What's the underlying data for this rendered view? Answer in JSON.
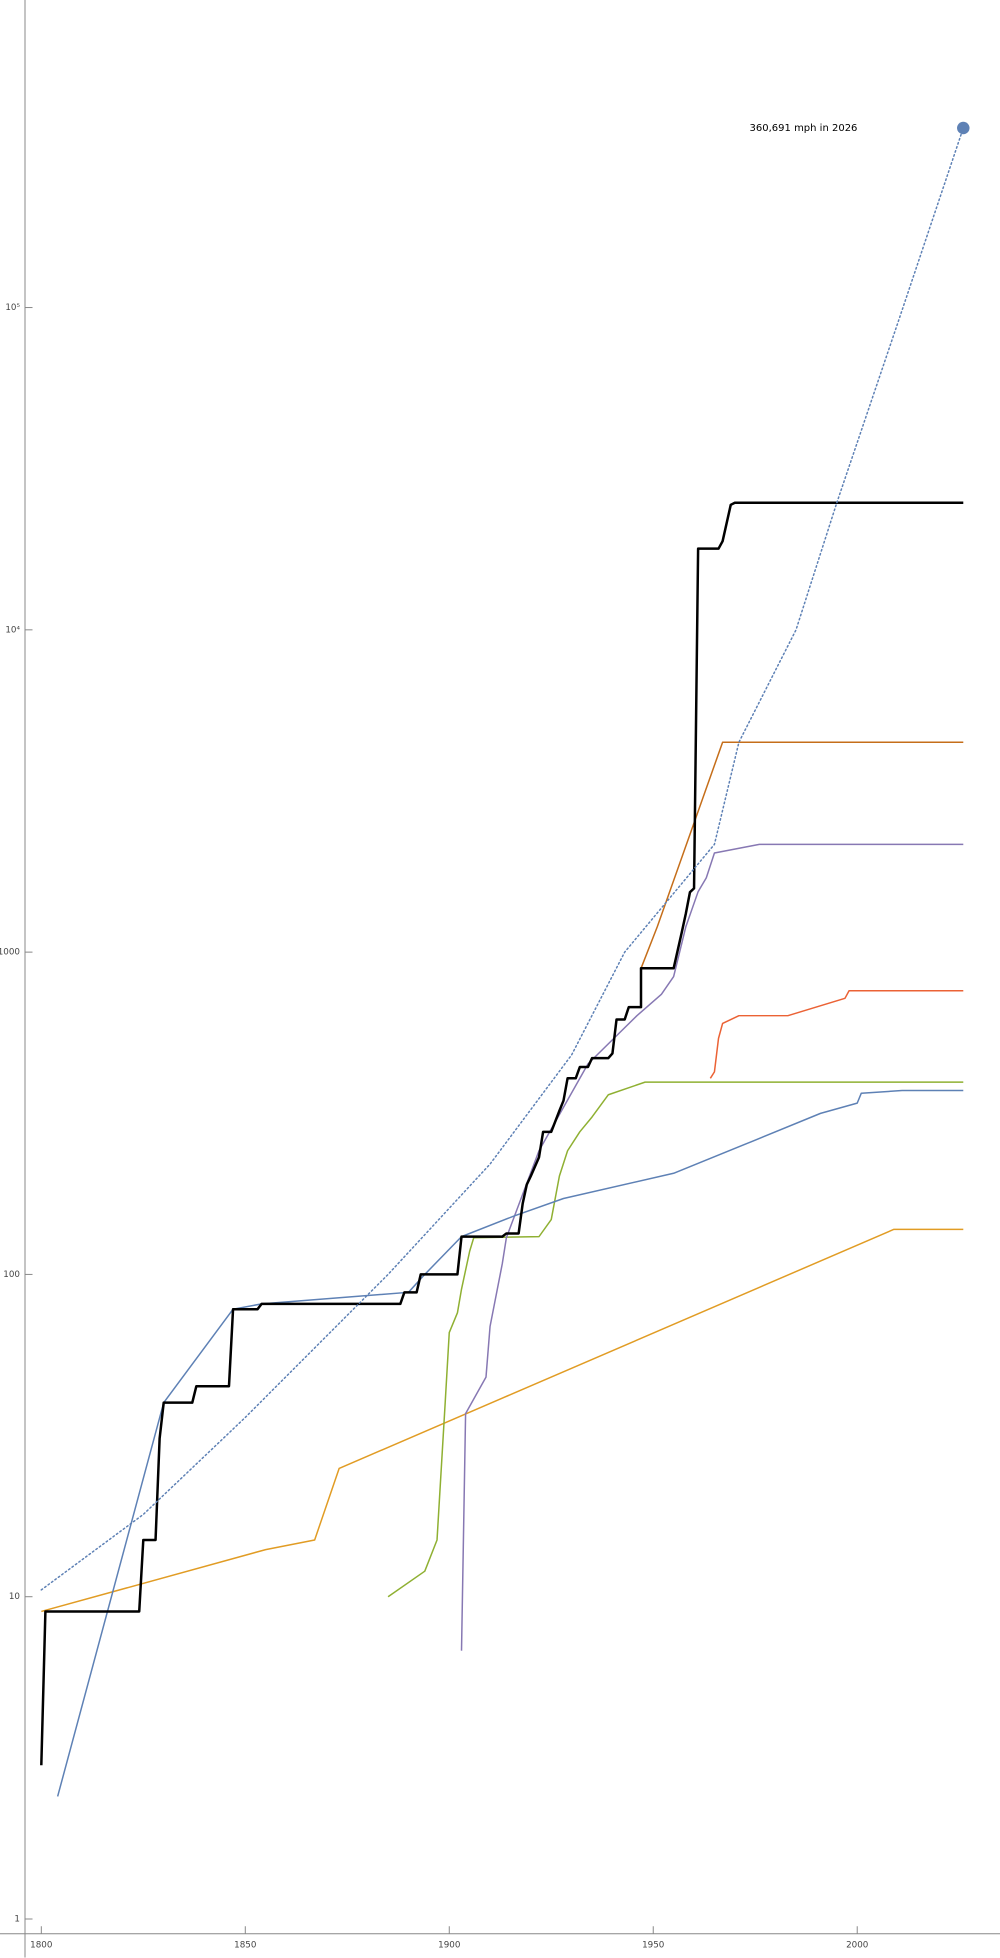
{
  "chart_data": {
    "type": "line",
    "log_y": true,
    "annotation": "360,691 mph in 2026",
    "xlim": [
      1796,
      2035
    ],
    "xticks": [
      1800,
      1850,
      1900,
      1950,
      2000
    ],
    "ylim": [
      0.9,
      900000
    ],
    "yticks": [
      1,
      10,
      100,
      1000,
      {
        "value": 10000,
        "label": "10⁴"
      },
      {
        "value": 100000,
        "label": "10⁵"
      }
    ],
    "series": [
      {
        "color": "#e19c24",
        "width": 1.2,
        "x": [
          1800,
          1855,
          1867,
          1873,
          2009,
          2026
        ],
        "values": [
          9,
          14,
          15,
          25,
          138,
          138
        ]
      },
      {
        "color": "#8fb032",
        "width": 1.2,
        "x": [
          1885,
          1894,
          1897,
          1899,
          1900,
          1902,
          1903,
          1905,
          1906,
          1922,
          1925,
          1927,
          1929,
          1932,
          1935,
          1939,
          1948,
          2026
        ],
        "values": [
          10,
          12,
          15,
          40,
          66,
          76,
          90,
          118,
          130,
          131,
          148,
          202,
          242,
          277,
          308,
          361,
          395,
          395
        ]
      },
      {
        "color": "#8778b3",
        "width": 1.2,
        "x": [
          1903,
          1904,
          1909,
          1910,
          1913,
          1914,
          1922,
          1934,
          1946,
          1952,
          1955,
          1958,
          1961,
          1963,
          1965,
          1976,
          2026
        ],
        "values": [
          6.8,
          37,
          48,
          69,
          108,
          130,
          242,
          450,
          635,
          740,
          840,
          1200,
          1540,
          1700,
          2030,
          2160,
          2160
        ]
      },
      {
        "color": "#c56e1a",
        "width": 1.2,
        "x": [
          1947,
          1951,
          1967,
          2026
        ],
        "values": [
          890,
          1200,
          4480,
          4480
        ]
      },
      {
        "color": "#eb6235",
        "width": 1.2,
        "x": [
          1964,
          1965,
          1966,
          1967,
          1971,
          1983,
          1997,
          1998,
          2026
        ],
        "values": [
          406,
          425,
          540,
          601,
          635,
          635,
          719,
          759,
          759
        ]
      },
      {
        "color": "#5e81b5",
        "width": 1.2,
        "x": [
          1804,
          1830,
          1847,
          1854,
          1890,
          1894,
          1903,
          1916,
          1928,
          1955,
          1974,
          1991,
          2000,
          2001,
          2011,
          2026
        ],
        "values": [
          2.4,
          40,
          78,
          81,
          88,
          100,
          131,
          152,
          172,
          206,
          258,
          316,
          340,
          365,
          372,
          372
        ]
      },
      {
        "color": "#000000",
        "width": 2,
        "x": [
          1800,
          1801,
          1824,
          1825,
          1828,
          1829,
          1830,
          1837,
          1838,
          1846,
          1847,
          1853,
          1854,
          1888,
          1889,
          1892,
          1893,
          1902,
          1903,
          1913,
          1914,
          1917,
          1918,
          1919,
          1920,
          1922,
          1923,
          1925,
          1927,
          1928,
          1929,
          1931,
          1932,
          1934,
          1935,
          1939,
          1940,
          1941,
          1943,
          1944,
          1947,
          1947,
          1955,
          1957,
          1958,
          1959,
          1960,
          1961,
          1966,
          1967,
          1969,
          1970,
          2026
        ],
        "values": [
          3,
          9,
          9,
          15,
          15,
          31,
          40,
          40,
          45,
          45,
          78,
          78,
          81,
          81,
          88,
          88,
          100,
          100,
          131,
          131,
          134,
          134,
          166,
          190,
          202,
          231,
          277,
          277,
          322,
          346,
          406,
          406,
          440,
          440,
          469,
          469,
          485,
          618,
          618,
          675,
          675,
          891,
          891,
          1153,
          1319,
          1535,
          1577,
          17860,
          17860,
          18840,
          24430,
          24800,
          24800
        ]
      },
      {
        "color": "#5e81b5",
        "width": 1.2,
        "style": "dotted",
        "end_marker": true,
        "x": [
          1800,
          1825,
          1850,
          1885,
          1910,
          1930,
          1943,
          1965,
          1971,
          1985,
          1995,
          2010,
          2026
        ],
        "values": [
          10.5,
          18,
          36,
          100,
          220,
          480,
          1000,
          2160,
          4480,
          10000,
          24800,
          90000,
          360691
        ]
      }
    ]
  }
}
